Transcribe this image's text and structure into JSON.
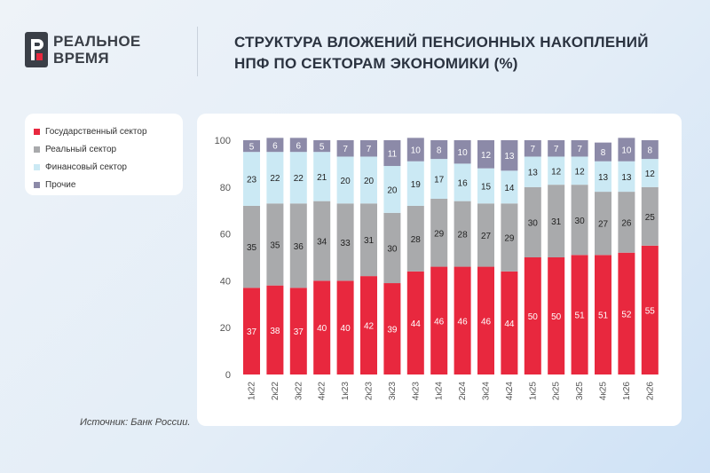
{
  "brand": {
    "line1": "РЕАЛЬНОЕ",
    "line2": "ВРЕМЯ",
    "accent_color": "#e8283e",
    "icon": "brand-r-logo"
  },
  "header": {
    "title_line1": "СТРУКТУРА ВЛОЖЕНИЙ ПЕНСИОННЫХ НАКОПЛЕНИЙ",
    "title_line2": "НПФ ПО СЕКТОРАМ ЭКОНОМИКИ (%)"
  },
  "legend": {
    "items": [
      {
        "label": "Государственный сектор",
        "color": "#e8283e"
      },
      {
        "label": "Реальный сектор",
        "color": "#a9aaac"
      },
      {
        "label": "Финансовый сектор",
        "color": "#cbe9f4"
      },
      {
        "label": "Прочие",
        "color": "#8c8aa8"
      }
    ]
  },
  "source": "Источник: Банк России.",
  "chart_data": {
    "type": "bar",
    "stacked": true,
    "categories": [
      "1к22",
      "2к22",
      "3к22",
      "4к22",
      "1к23",
      "2к23",
      "3к23",
      "4к23",
      "1к24",
      "2к24",
      "3к24",
      "4к24",
      "1к25",
      "2к25",
      "3к25",
      "4к25",
      "1к26",
      "2к26"
    ],
    "series": [
      {
        "name": "Государственный сектор",
        "color": "#e8283e",
        "label_color": "#ffffff",
        "values": [
          37,
          38,
          37,
          40,
          40,
          42,
          39,
          44,
          46,
          46,
          46,
          44,
          50,
          50,
          51,
          51,
          52,
          55
        ]
      },
      {
        "name": "Реальный сектор",
        "color": "#a9aaac",
        "label_color": "#222222",
        "values": [
          35,
          35,
          36,
          34,
          33,
          31,
          30,
          28,
          29,
          28,
          27,
          29,
          30,
          31,
          30,
          27,
          26,
          25
        ]
      },
      {
        "name": "Финансовый сектор",
        "color": "#cbe9f4",
        "label_color": "#222222",
        "values": [
          23,
          22,
          22,
          21,
          20,
          20,
          20,
          19,
          17,
          16,
          15,
          14,
          13,
          12,
          12,
          13,
          13,
          12
        ]
      },
      {
        "name": "Прочие",
        "color": "#8c8aa8",
        "label_color": "#ffffff",
        "values": [
          5,
          6,
          6,
          5,
          7,
          7,
          11,
          10,
          8,
          10,
          12,
          13,
          7,
          7,
          7,
          8,
          10,
          8
        ]
      }
    ],
    "y_ticks": [
      0,
      20,
      40,
      60,
      80,
      100
    ],
    "ylim": [
      0,
      100
    ],
    "grid": false,
    "legend_position": "left"
  }
}
